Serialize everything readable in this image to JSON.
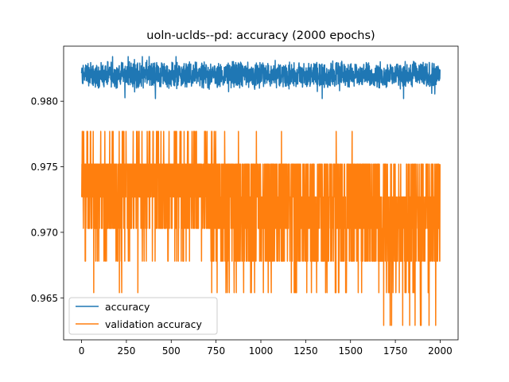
{
  "chart_data": {
    "type": "line",
    "title": "uoln-uclds--pd: accuracy (2000 epochs)",
    "xlabel": "",
    "ylabel": "",
    "xlim": [
      -100,
      2100
    ],
    "ylim": [
      0.9618,
      0.9842
    ],
    "xticks": [
      0,
      250,
      500,
      750,
      1000,
      1250,
      1500,
      1750,
      2000
    ],
    "yticks": [
      0.965,
      0.97,
      0.975,
      0.98
    ],
    "grid": false,
    "legend_position": "lower left",
    "series": [
      {
        "name": "accuracy",
        "color": "#1f77b4",
        "summary": {
          "epochs": 2000,
          "min": 0.9802,
          "max": 0.9834,
          "typical_range": [
            0.9812,
            0.9828
          ]
        }
      },
      {
        "name": "validation accuracy",
        "color": "#ff7f0e",
        "levels": [
          0.9629,
          0.9654,
          0.9678,
          0.9703,
          0.9727,
          0.9752,
          0.9777
        ],
        "summary": {
          "epochs": 2000,
          "min": 0.9629,
          "max": 0.9777
        }
      }
    ]
  }
}
